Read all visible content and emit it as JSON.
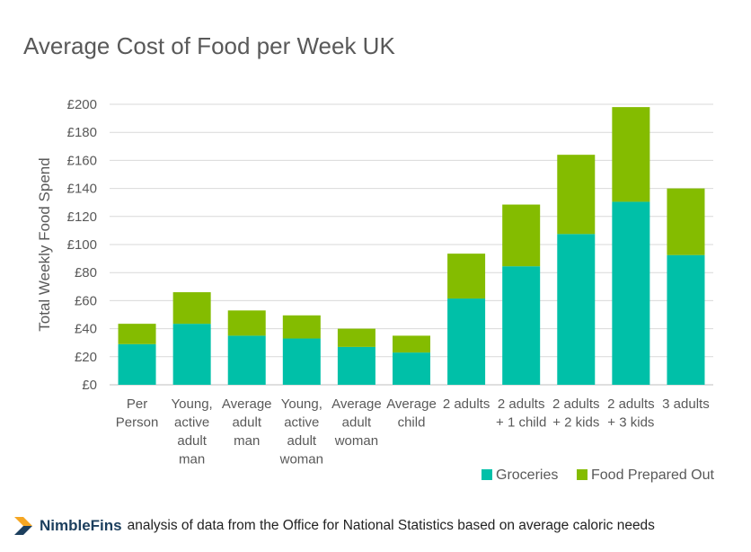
{
  "footer": {
    "brand": "NimbleFins",
    "note": "analysis of data from the Office for National Statistics based on average caloric needs"
  },
  "colors": {
    "groceries": "#00c0a8",
    "food_out": "#84bc00",
    "grid": "#d9d9d9",
    "logo_orange": "#f5a623",
    "logo_navy": "#1c3f5e"
  },
  "chart_data": {
    "type": "bar",
    "stacked": true,
    "title": "Average Cost of Food per Week UK",
    "xlabel": "",
    "ylabel": "Total Weekly Food Spend",
    "ylim": [
      0,
      200
    ],
    "yticks": [
      0,
      20,
      40,
      60,
      80,
      100,
      120,
      140,
      160,
      180,
      200
    ],
    "ytick_labels": [
      "£0",
      "£20",
      "£40",
      "£60",
      "£80",
      "£100",
      "£120",
      "£140",
      "£160",
      "£180",
      "£200"
    ],
    "grid": true,
    "legend_position": "bottom-right",
    "categories": [
      [
        "Per",
        "Person"
      ],
      [
        "Young,",
        "active",
        "adult",
        "man"
      ],
      [
        "Average",
        "adult",
        "man"
      ],
      [
        "Young,",
        "active",
        "adult",
        "woman"
      ],
      [
        "Average",
        "adult",
        "woman"
      ],
      [
        "Average",
        "child"
      ],
      [
        "2 adults"
      ],
      [
        "2 adults",
        "+ 1 child"
      ],
      [
        "2 adults",
        "+ 2 kids"
      ],
      [
        "2 adults",
        "+ 3 kids"
      ],
      [
        "3 adults"
      ]
    ],
    "series": [
      {
        "name": "Groceries",
        "values": [
          29,
          43.5,
          35,
          33,
          27,
          23,
          61.5,
          84.5,
          107.5,
          130.5,
          92.5
        ]
      },
      {
        "name": "Food Prepared Out",
        "values": [
          14.5,
          22.5,
          18,
          16.5,
          13,
          12,
          32,
          44,
          56.5,
          67.5,
          47.5
        ]
      }
    ]
  }
}
